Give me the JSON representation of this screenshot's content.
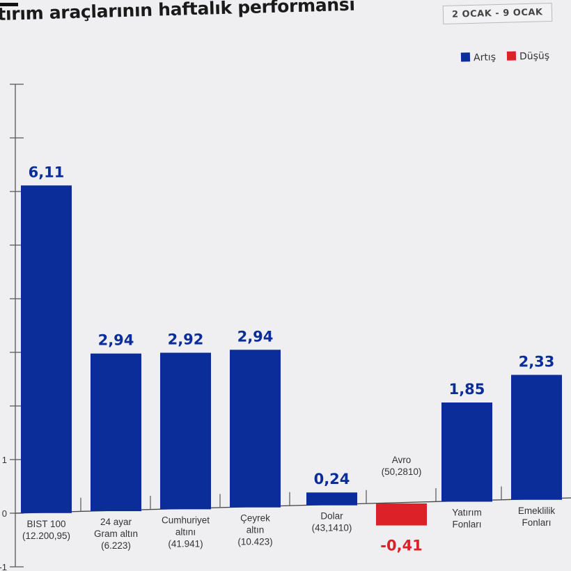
{
  "header": {
    "title": "tırım araçlarının haftalık performansı",
    "date_range": "2 OCAK - 9 OCAK"
  },
  "legend": [
    {
      "label": "Artış",
      "color": "#0a2d9a"
    },
    {
      "label": "Düşüş",
      "color": "#dd2129"
    }
  ],
  "chart_data": {
    "type": "bar",
    "title": "tırım araçlarının haftalık performansı",
    "ylim": [
      -1,
      8
    ],
    "yticks": [
      -1,
      0,
      1,
      2,
      3,
      4,
      5,
      6,
      7,
      8
    ],
    "ytick_labels_visible": [
      "-1",
      "0",
      "1"
    ],
    "grid": false,
    "legend_position": "top-right",
    "categories": [
      [
        "BIST 100",
        "(12.200,95)"
      ],
      [
        "24 ayar",
        "Gram altın",
        "(6.223)"
      ],
      [
        "Cumhuriyet",
        "altını",
        "(41.941)"
      ],
      [
        "Çeyrek",
        "altın",
        "(10.423)"
      ],
      [
        "Dolar",
        "(43,1410)"
      ],
      [
        "Avro",
        "(50,2810)"
      ],
      [
        "Yatırım",
        "Fonları"
      ],
      [
        "Emeklilik",
        "Fonları"
      ]
    ],
    "values": [
      6.11,
      2.94,
      2.92,
      2.94,
      0.24,
      -0.41,
      1.85,
      2.33
    ],
    "value_labels": [
      "6,11",
      "2,94",
      "2,92",
      "2,94",
      "0,24",
      "-0,41",
      "1,85",
      "2,33"
    ],
    "colors": {
      "positive": "#0a2d9a",
      "negative": "#dd2129"
    }
  }
}
